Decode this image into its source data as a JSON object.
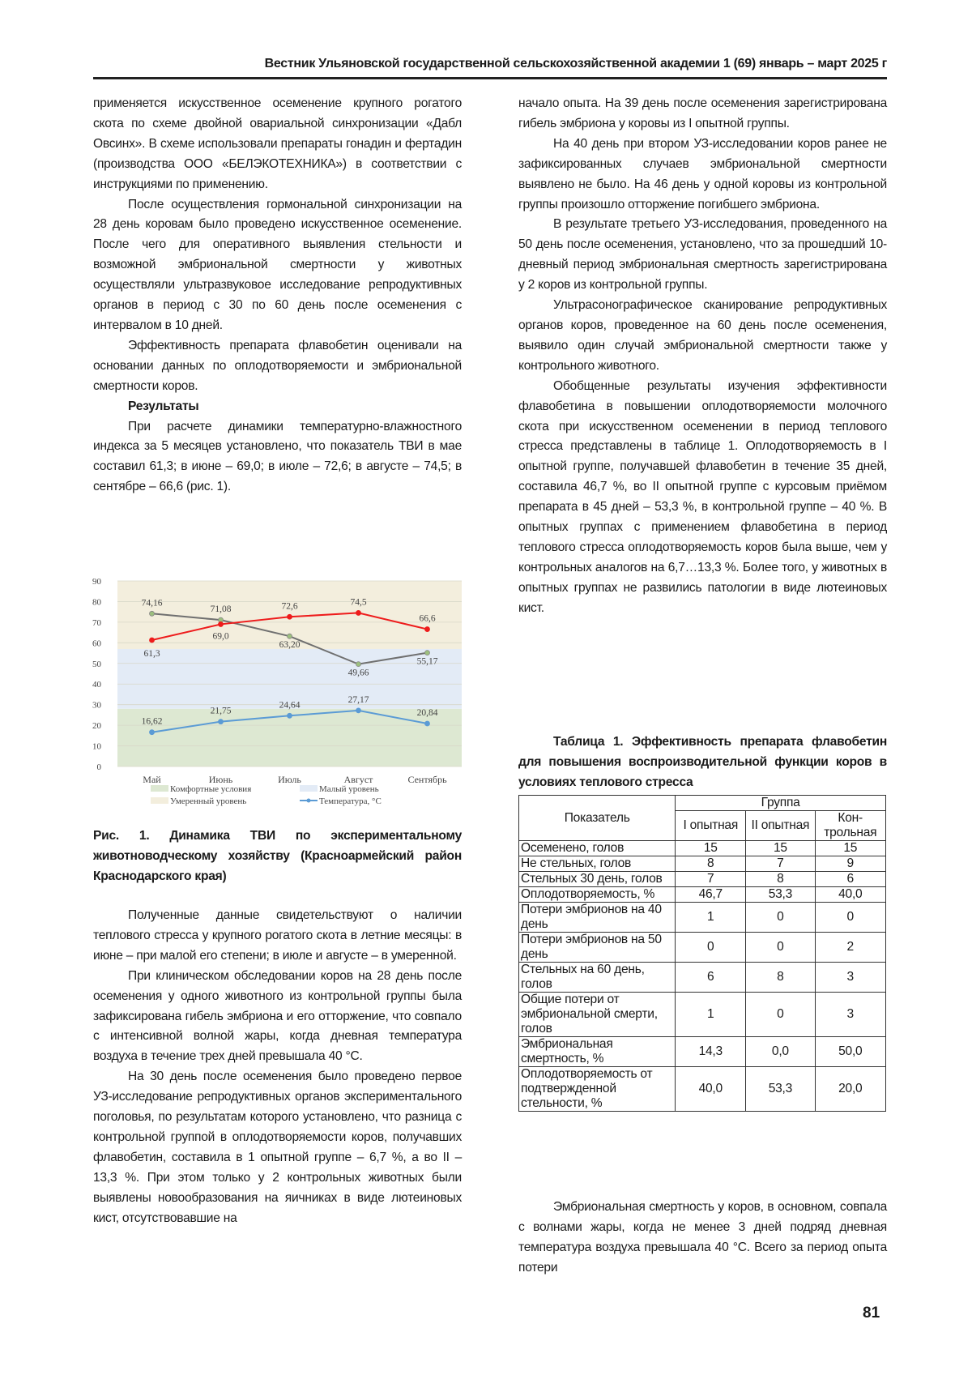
{
  "header": {
    "journal": "Вестник Ульяновской государственной сельскохозяйственной академии 1 (69) январь – март 2025 г"
  },
  "left": {
    "paragraphs_top": [
      "применяется искусственное осеменение крупного рогатого скота по схеме двойной овариальной синхронизации «Дабл Овсинх». В схеме использовали препараты гонадин и фертадин (производства ООО «БЕЛЭКОТЕХНИКА») в соответствии с инструкциями по применению.",
      "После осуществления гормональной синхронизации на 28 день коровам было проведено искусственное осеменение. После чего для оперативного выявления стельности и возможной эмбриональной смертности у животных осуществляли ультразвуковое исследование репродуктивных органов в период с 30 по 60 день после осеменения с интервалом в 10 дней.",
      "Эффективность препарата флавобетин оценивали на основании данных по оплодотворяемости и эмбриональной смертности коров."
    ],
    "results_heading": "Результаты",
    "results_paragraph": "При расчете динамики температурно-влажностного индекса за 5 месяцев установлено, что показатель ТВИ в мае составил 61,3; в июне – 69,0; в июле – 72,6; в августе – 74,5; в сентябре – 66,6 (рис. 1).",
    "figure_caption": "Рис. 1. Динамика ТВИ по экспериментальному животноводческому хозяйству (Красноармейский район Краснодарского края)",
    "paragraphs_bottom": [
      "Полученные данные свидетельствуют о наличии теплового стресса у крупного рогатого скота в летние месяцы: в июне – при малой его степени; в июле и августе – в умеренной.",
      "При клиническом обследовании коров на 28 день после осеменения у одного животного из контрольной группы была зафиксирована гибель эмбриона и его отторжение, что совпало с интенсивной волной жары, когда дневная температура воздуха в течение трех дней превышала 40 °С.",
      "На 30 день после осеменения было проведено первое УЗ-исследование репродуктивных органов экспериментального поголовья, по результатам которого установлено, что разница с контрольной группой в оплодотворяемости коров, получавших флавобетин, составила в 1 опытной группе – 6,7 %, а во II – 13,3 %. При этом только у 2 контрольных животных были выявлены новообразования на яичниках в виде лютеиновых кист, отсутствовавшие на"
    ]
  },
  "right": {
    "paragraphs": [
      "начало опыта. На 39 день после осеменения зарегистрирована гибель эмбриона у коровы из I опытной группы.",
      "На 40 день при втором УЗ-исследовании коров ранее не зафиксированных случаев эмбриональной смертности выявлено не было. На 46 день у одной коровы из контрольной группы произошло отторжение погибшего эмбриона.",
      "В результате третьего УЗ-исследования, проведенного на 50 день после осеменения, установлено, что за прошедший 10-дневный период эмбриональная смертность зарегистрирована у 2 коров из контрольной группы.",
      "Ультрасонографическое сканирование репродуктивных органов коров, проведенное на 60 день после осеменения, выявило один случай эмбриональной смертности также у контрольного животного.",
      "Обобщенные результаты изучения эффективности флавобетина в повышении оплодотворяемости молочного скота при искусственном осеменении в период теплового стресса представлены в таблице 1. Оплодотворяемость в I опытной группе, получавшей флавобетин в течение 35 дней, составила 46,7 %, во II опытной группе с курсовым приёмом препарата в 45 дней – 53,3 %, в контрольной группе – 40 %. В опытных группах с применением флавобетина в период теплового стресса оплодотворяемость коров была выше, чем у контрольных аналогов на 6,7…13,3 %. Более того, у животных в опытных группах не развились патологии в виде лютеиновых кист."
    ],
    "table_caption": "Таблица 1. Эффективность препарата флавобетин для повышения воспроизводительной функции коров в условиях теплового стресса",
    "final_paragraph": "Эмбриональная смертность у коров, в основном, совпала с волнами жары, когда не менее 3 дней подряд дневная температура воздуха превышала 40 °С. Всего за период опыта потери"
  },
  "table": {
    "col_indicator": "Показатель",
    "col_group": "Группа",
    "groups": [
      "I опытная",
      "II опыт­ная",
      "Кон­трольная"
    ],
    "rows": [
      {
        "label": "Осеменено, голов",
        "values": [
          "15",
          "15",
          "15"
        ]
      },
      {
        "label": "Не стельных, голов",
        "values": [
          "8",
          "7",
          "9"
        ]
      },
      {
        "label": "Стельных 30 день, голов",
        "values": [
          "7",
          "8",
          "6"
        ]
      },
      {
        "label": "Оплодотворяемость, %",
        "values": [
          "46,7",
          "53,3",
          "40,0"
        ]
      },
      {
        "label": "Потери эмбрионов на 40 день",
        "values": [
          "1",
          "0",
          "0"
        ]
      },
      {
        "label": "Потери эмбрионов на 50 день",
        "values": [
          "0",
          "0",
          "2"
        ]
      },
      {
        "label": "Стельных на 60 день, голов",
        "values": [
          "6",
          "8",
          "3"
        ]
      },
      {
        "label": "Общие потери от эмбриональной смерти, голов",
        "values": [
          "1",
          "0",
          "3"
        ]
      },
      {
        "label": "Эмбриональная смертность, %",
        "values": [
          "14,3",
          "0,0",
          "50,0"
        ]
      },
      {
        "label": "Оплодотворяемость от подтвержденной стельности, %",
        "values": [
          "40,0",
          "53,3",
          "20,0"
        ]
      }
    ]
  },
  "chart_data": {
    "type": "line",
    "categories": [
      "Май",
      "Июнь",
      "Июль",
      "Август",
      "Сентябрь"
    ],
    "ylim": [
      0,
      90
    ],
    "yticks": [
      0,
      10,
      20,
      30,
      40,
      50,
      60,
      70,
      80,
      90
    ],
    "bands": [
      {
        "name": "Комфортные условия",
        "from": 0,
        "to": 28,
        "color": "#dde8d2"
      },
      {
        "name": "Малый уровень",
        "from": 28,
        "to": 57,
        "color": "#e3ebf6"
      },
      {
        "name": "Умеренный уровень",
        "from": 57,
        "to": 90,
        "color": "#f3eedd"
      }
    ],
    "series": [
      {
        "values": [
          74.16,
          71.08,
          63.2,
          49.66,
          55.17
        ],
        "labels": [
          "74,16",
          "71,08",
          "63,20",
          "49,66",
          "55,17"
        ],
        "color": "#707070",
        "marker": "#9cbf7e"
      },
      {
        "values": [
          61.3,
          69.0,
          72.6,
          74.5,
          66.6
        ],
        "labels": [
          "61,3",
          "69,0",
          "72,6",
          "74,5",
          "66,6"
        ],
        "color": "#ee1c1c",
        "marker": "#ee1c1c"
      },
      {
        "name": "Температура, °С",
        "values": [
          16.62,
          21.75,
          24.64,
          27.17,
          20.84
        ],
        "labels": [
          "16,62",
          "21,75",
          "24,64",
          "27,17",
          "20,84"
        ],
        "color": "#5b9bd5",
        "marker": "#5b9bd5"
      }
    ],
    "legend": [
      "Комфортные условия",
      "Малый уровень",
      "Умеренный уровень",
      "Температура, °С"
    ],
    "grid": true
  },
  "page_number": "81"
}
